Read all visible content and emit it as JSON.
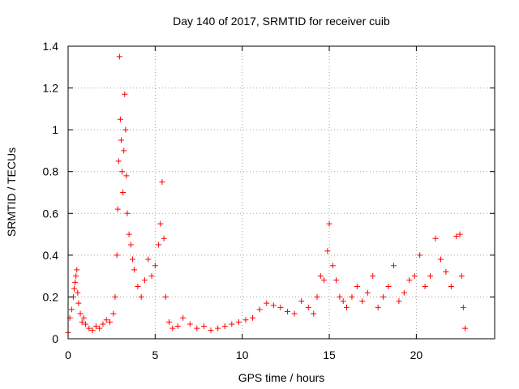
{
  "chart_data": {
    "type": "scatter",
    "title": "Day 140 of 2017, SRMTID for receiver cuib",
    "xlabel": "GPS time / hours",
    "ylabel": "SRMTID / TECUs",
    "xlim": [
      0,
      24.5
    ],
    "ylim": [
      0,
      1.4
    ],
    "x_ticks": [
      0,
      5,
      10,
      15,
      20
    ],
    "x_tick_labels": [
      "0",
      "5",
      "10",
      "15",
      "20"
    ],
    "y_ticks": [
      0,
      0.2,
      0.4,
      0.6,
      0.8,
      1.0,
      1.2,
      1.4
    ],
    "y_tick_labels": [
      "0",
      "0.2",
      "0.4",
      "0.6",
      "0.8",
      "1",
      "1.2",
      "1.4"
    ],
    "grid": true,
    "marker": "+",
    "series": [
      {
        "name": "SRMTID",
        "color": "#ff0000",
        "x": [
          0.0,
          0.1,
          0.2,
          0.3,
          0.35,
          0.4,
          0.45,
          0.5,
          0.55,
          0.6,
          0.7,
          0.8,
          0.9,
          1.0,
          1.2,
          1.4,
          1.6,
          1.8,
          2.0,
          2.2,
          2.4,
          2.6,
          2.7,
          2.8,
          2.85,
          2.9,
          2.95,
          3.0,
          3.05,
          3.1,
          3.15,
          3.2,
          3.25,
          3.3,
          3.35,
          3.4,
          3.5,
          3.6,
          3.7,
          3.8,
          4.0,
          4.2,
          4.4,
          4.6,
          4.8,
          5.0,
          5.2,
          5.3,
          5.4,
          5.5,
          5.6,
          5.8,
          6.0,
          6.3,
          6.6,
          7.0,
          7.4,
          7.8,
          8.2,
          8.6,
          9.0,
          9.4,
          9.8,
          10.2,
          10.6,
          11.0,
          11.4,
          11.8,
          12.2,
          12.6,
          13.0,
          13.4,
          13.8,
          14.1,
          14.3,
          14.5,
          14.7,
          14.9,
          15.0,
          15.2,
          15.4,
          15.6,
          15.8,
          16.0,
          16.3,
          16.6,
          16.9,
          17.2,
          17.5,
          17.8,
          18.1,
          18.4,
          18.7,
          19.0,
          19.3,
          19.6,
          19.9,
          20.2,
          20.5,
          20.8,
          21.1,
          21.4,
          21.7,
          22.0,
          22.3,
          22.5,
          22.6,
          22.7,
          22.8
        ],
        "y": [
          0.03,
          0.1,
          0.14,
          0.2,
          0.24,
          0.27,
          0.3,
          0.33,
          0.22,
          0.17,
          0.12,
          0.08,
          0.1,
          0.07,
          0.05,
          0.04,
          0.06,
          0.05,
          0.07,
          0.09,
          0.08,
          0.12,
          0.2,
          0.4,
          0.62,
          0.85,
          1.35,
          1.05,
          0.95,
          0.8,
          0.7,
          0.9,
          1.17,
          1.0,
          0.78,
          0.6,
          0.5,
          0.45,
          0.38,
          0.33,
          0.25,
          0.2,
          0.28,
          0.38,
          0.3,
          0.35,
          0.45,
          0.55,
          0.75,
          0.48,
          0.2,
          0.08,
          0.05,
          0.06,
          0.1,
          0.07,
          0.05,
          0.06,
          0.04,
          0.05,
          0.06,
          0.07,
          0.08,
          0.09,
          0.1,
          0.14,
          0.17,
          0.16,
          0.15,
          0.13,
          0.12,
          0.18,
          0.15,
          0.12,
          0.2,
          0.3,
          0.28,
          0.42,
          0.55,
          0.35,
          0.28,
          0.2,
          0.18,
          0.15,
          0.2,
          0.25,
          0.18,
          0.22,
          0.3,
          0.15,
          0.2,
          0.25,
          0.35,
          0.18,
          0.22,
          0.28,
          0.3,
          0.4,
          0.25,
          0.3,
          0.48,
          0.38,
          0.32,
          0.25,
          0.49,
          0.5,
          0.3,
          0.15,
          0.05
        ]
      }
    ]
  }
}
